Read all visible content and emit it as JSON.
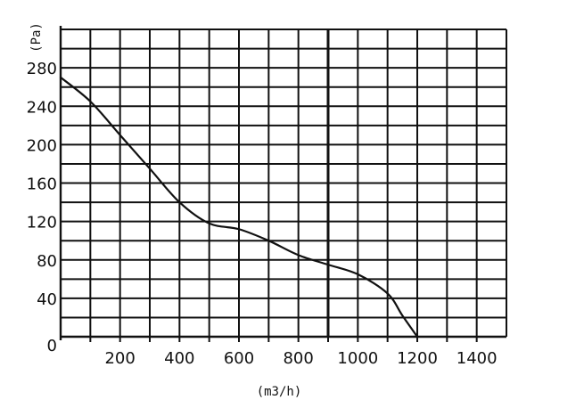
{
  "chart_data": {
    "type": "line",
    "title": "",
    "xlabel": "(m3/h)",
    "ylabel": "(Pa)",
    "xlim": [
      0,
      1500
    ],
    "ylim": [
      0,
      320
    ],
    "grid": true,
    "x_ticks": [
      200,
      400,
      600,
      800,
      1000,
      1200,
      1400
    ],
    "y_ticks": [
      0,
      40,
      80,
      120,
      160,
      200,
      240,
      280
    ],
    "x": [
      0,
      100,
      200,
      300,
      400,
      500,
      600,
      700,
      800,
      900,
      1000,
      1100,
      1150,
      1200
    ],
    "values": [
      270,
      245,
      210,
      175,
      140,
      118,
      112,
      100,
      85,
      75,
      65,
      45,
      22,
      0
    ]
  }
}
